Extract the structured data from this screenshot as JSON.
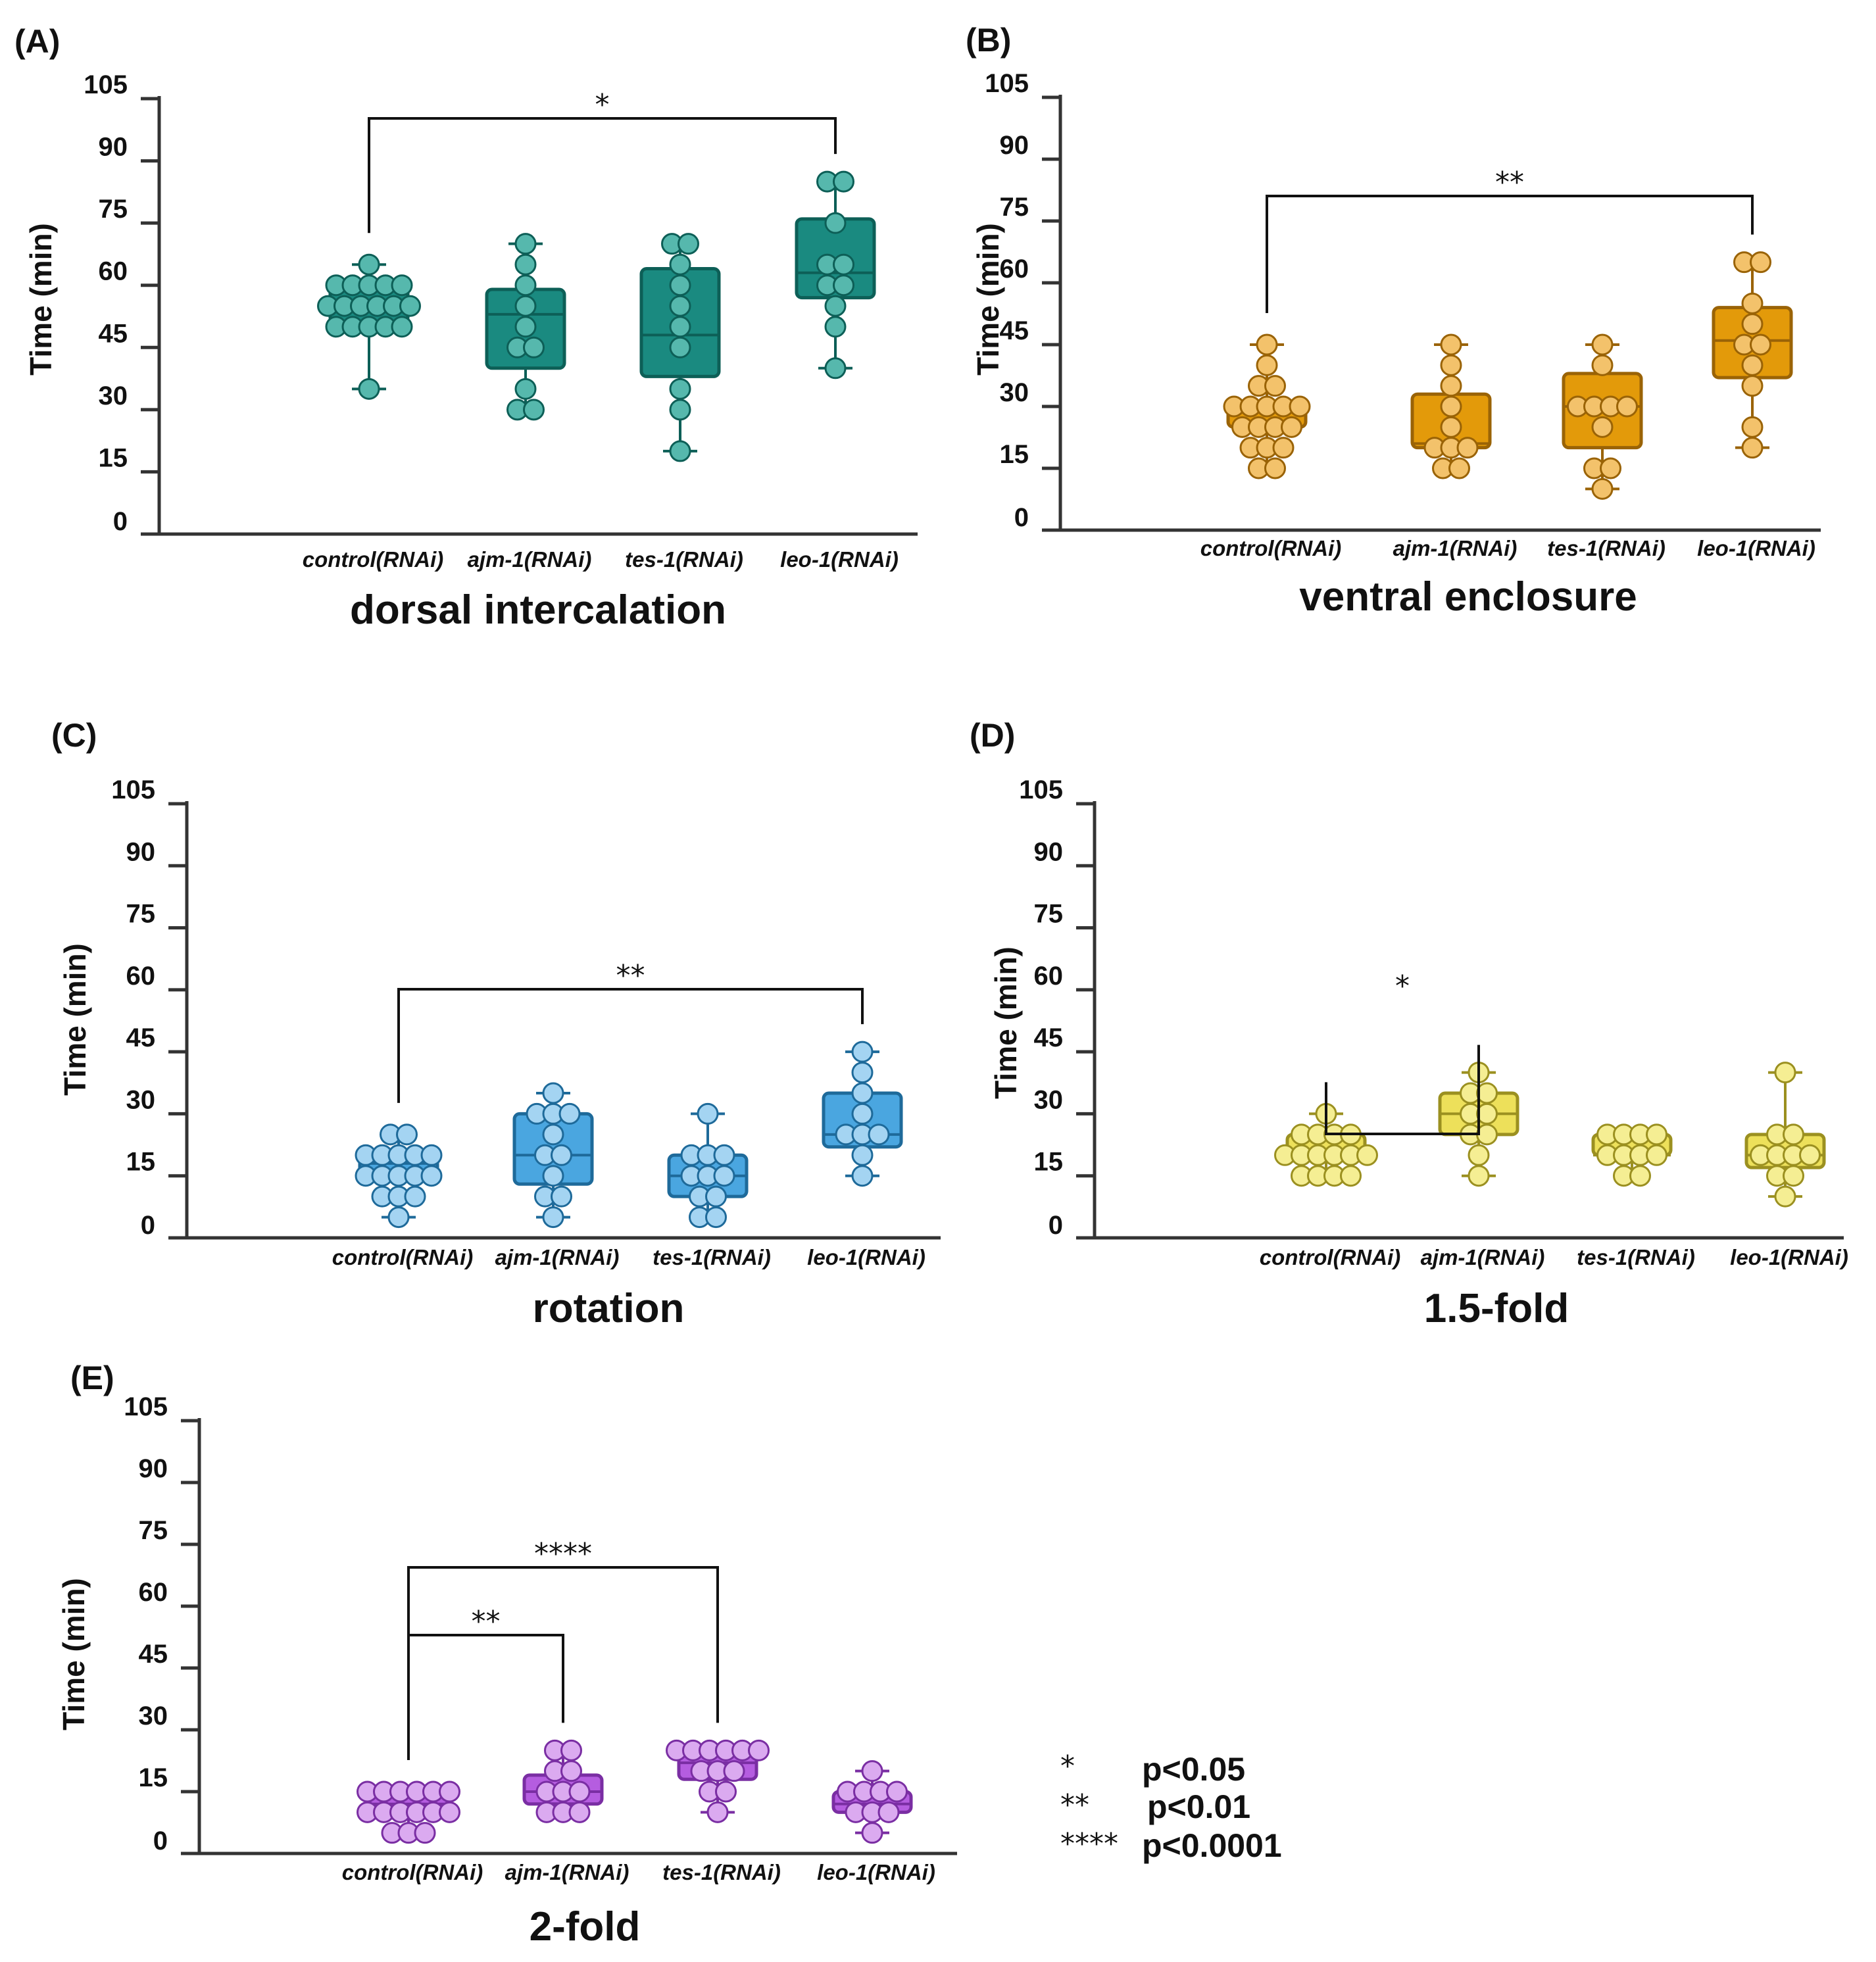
{
  "figure": {
    "y_axis_label": "Time (min)",
    "y_ticks": [
      "0",
      "15",
      "30",
      "45",
      "60",
      "75",
      "90",
      "105"
    ]
  },
  "chart_data": [
    {
      "panel": "(A)",
      "type": "box",
      "xlabel": "dorsal intercalation",
      "ylabel": "Time (min)",
      "ylim": [
        0,
        105
      ],
      "categories": [
        "control(RNAi)",
        "ajm-1(RNAi)",
        "tes-1(RNAi)",
        "leo-1(RNAi)"
      ],
      "colors": {
        "fill": "#1a8a80",
        "edge": "#0d5f57",
        "point": "#56b8ad"
      },
      "boxes": [
        {
          "min": 35,
          "q1": 51,
          "median": 55,
          "q3": 60,
          "max": 65
        },
        {
          "min": 30,
          "q1": 40,
          "median": 53,
          "q3": 59,
          "max": 70
        },
        {
          "min": 20,
          "q1": 38,
          "median": 48,
          "q3": 64,
          "max": 70
        },
        {
          "min": 40,
          "q1": 57,
          "median": 63,
          "q3": 76,
          "max": 85
        }
      ],
      "points": [
        [
          35,
          50,
          50,
          50,
          50,
          50,
          55,
          55,
          55,
          55,
          55,
          55,
          60,
          60,
          60,
          60,
          60,
          65
        ],
        [
          30,
          30,
          35,
          45,
          45,
          50,
          55,
          60,
          65,
          70
        ],
        [
          20,
          30,
          35,
          45,
          50,
          55,
          60,
          65,
          70,
          70
        ],
        [
          40,
          50,
          55,
          60,
          60,
          65,
          65,
          75,
          85,
          85
        ]
      ],
      "comparisons": [
        {
          "from": 0,
          "to": 3,
          "label": "*"
        }
      ]
    },
    {
      "panel": "(B)",
      "type": "box",
      "xlabel": "ventral enclosure",
      "ylabel": "Time (min)",
      "ylim": [
        0,
        105
      ],
      "categories": [
        "control(RNAi)",
        "ajm-1(RNAi)",
        "tes-1(RNAi)",
        "leo-1(RNAi)"
      ],
      "colors": {
        "fill": "#e39a0a",
        "edge": "#9a6306",
        "point": "#f3c26b"
      },
      "boxes": [
        {
          "min": 15,
          "q1": 25,
          "median": 30,
          "q3": 31,
          "max": 45
        },
        {
          "min": 15,
          "q1": 20,
          "median": 21,
          "q3": 33,
          "max": 45
        },
        {
          "min": 10,
          "q1": 20,
          "median": 30,
          "q3": 38,
          "max": 45
        },
        {
          "min": 20,
          "q1": 37,
          "median": 46,
          "q3": 54,
          "max": 65
        }
      ],
      "points": [
        [
          15,
          15,
          20,
          20,
          20,
          25,
          25,
          25,
          25,
          30,
          30,
          30,
          30,
          30,
          35,
          35,
          40,
          45
        ],
        [
          15,
          15,
          20,
          20,
          20,
          25,
          30,
          35,
          40,
          45
        ],
        [
          10,
          15,
          15,
          25,
          30,
          30,
          30,
          30,
          40,
          45
        ],
        [
          20,
          25,
          35,
          40,
          45,
          45,
          50,
          55,
          65,
          65
        ]
      ],
      "comparisons": [
        {
          "from": 0,
          "to": 3,
          "label": "**"
        }
      ]
    },
    {
      "panel": "(C)",
      "type": "box",
      "xlabel": "rotation",
      "ylabel": "Time (min)",
      "ylim": [
        0,
        105
      ],
      "categories": [
        "control(RNAi)",
        "ajm-1(RNAi)",
        "tes-1(RNAi)",
        "leo-1(RNAi)"
      ],
      "colors": {
        "fill": "#4aa6e0",
        "edge": "#1e6a9a",
        "point": "#a4d4f2"
      },
      "boxes": [
        {
          "min": 5,
          "q1": 15,
          "median": 18,
          "q3": 20,
          "max": 25
        },
        {
          "min": 5,
          "q1": 13,
          "median": 20,
          "q3": 30,
          "max": 35
        },
        {
          "min": 5,
          "q1": 10,
          "median": 15,
          "q3": 20,
          "max": 30
        },
        {
          "min": 15,
          "q1": 22,
          "median": 25,
          "q3": 35,
          "max": 45
        }
      ],
      "points": [
        [
          5,
          10,
          10,
          10,
          15,
          15,
          15,
          15,
          15,
          20,
          20,
          20,
          20,
          20,
          25,
          25
        ],
        [
          5,
          10,
          10,
          15,
          20,
          20,
          25,
          30,
          30,
          30,
          35
        ],
        [
          5,
          5,
          10,
          10,
          15,
          15,
          15,
          20,
          20,
          20,
          30
        ],
        [
          15,
          20,
          25,
          25,
          25,
          30,
          35,
          40,
          45
        ]
      ],
      "comparisons": [
        {
          "from": 0,
          "to": 3,
          "label": "**"
        }
      ]
    },
    {
      "panel": "(D)",
      "type": "box",
      "xlabel": "1.5-fold",
      "ylabel": "Time (min)",
      "ylim": [
        0,
        105
      ],
      "categories": [
        "control(RNAi)",
        "ajm-1(RNAi)",
        "tes-1(RNAi)",
        "leo-1(RNAi)"
      ],
      "colors": {
        "fill": "#ede05a",
        "edge": "#9b9020",
        "point": "#f5ee93"
      },
      "boxes": [
        {
          "min": 15,
          "q1": 20,
          "median": 20,
          "q3": 25,
          "max": 30
        },
        {
          "min": 15,
          "q1": 25,
          "median": 30,
          "q3": 35,
          "max": 40
        },
        {
          "min": 15,
          "q1": 20,
          "median": 20,
          "q3": 25,
          "max": 25
        },
        {
          "min": 10,
          "q1": 17,
          "median": 20,
          "q3": 25,
          "max": 40
        }
      ],
      "points": [
        [
          15,
          15,
          15,
          15,
          20,
          20,
          20,
          20,
          20,
          20,
          25,
          25,
          25,
          25,
          30
        ],
        [
          15,
          20,
          25,
          25,
          30,
          30,
          35,
          35,
          40
        ],
        [
          15,
          15,
          20,
          20,
          20,
          20,
          25,
          25,
          25,
          25
        ],
        [
          10,
          15,
          15,
          20,
          20,
          20,
          20,
          25,
          25,
          40
        ]
      ],
      "comparisons": [
        {
          "from": 0,
          "to": 1,
          "label": "*"
        }
      ]
    },
    {
      "panel": "(E)",
      "type": "box",
      "xlabel": "2-fold",
      "ylabel": "Time (min)",
      "ylim": [
        0,
        105
      ],
      "categories": [
        "control(RNAi)",
        "ajm-1(RNAi)",
        "tes-1(RNAi)",
        "leo-1(RNAi)"
      ],
      "colors": {
        "fill": "#b55de0",
        "edge": "#7a2ea3",
        "point": "#dbaaf0"
      },
      "boxes": [
        {
          "min": 5,
          "q1": 10,
          "median": 12,
          "q3": 15,
          "max": 15
        },
        {
          "min": 10,
          "q1": 12,
          "median": 15,
          "q3": 19,
          "max": 25
        },
        {
          "min": 10,
          "q1": 18,
          "median": 22,
          "q3": 25,
          "max": 25
        },
        {
          "min": 5,
          "q1": 10,
          "median": 12,
          "q3": 15,
          "max": 20
        }
      ],
      "points": [
        [
          5,
          5,
          5,
          10,
          10,
          10,
          10,
          10,
          10,
          15,
          15,
          15,
          15,
          15,
          15
        ],
        [
          10,
          10,
          10,
          15,
          15,
          15,
          20,
          20,
          25,
          25
        ],
        [
          10,
          15,
          15,
          20,
          20,
          20,
          25,
          25,
          25,
          25,
          25,
          25
        ],
        [
          5,
          10,
          10,
          10,
          15,
          15,
          15,
          15,
          20
        ]
      ],
      "comparisons": [
        {
          "from": 0,
          "to": 1,
          "label": "**"
        },
        {
          "from": 0,
          "to": 2,
          "label": "****"
        }
      ]
    }
  ],
  "legend": [
    {
      "stars": "*",
      "text": "p<0.05"
    },
    {
      "stars": "**",
      "text": "p<0.01"
    },
    {
      "stars": "****",
      "text": "p<0.0001"
    }
  ]
}
